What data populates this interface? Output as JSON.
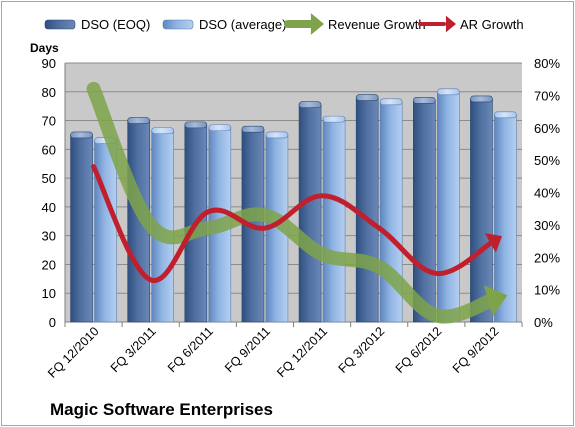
{
  "company": "Magic Software Enterprises",
  "colors": {
    "dso_eoq": "#4f6fa0",
    "dso_avg": "#8fb4e3",
    "revenue_growth": "#7ea34a",
    "ar_growth": "#c0202e",
    "plot_bg": "#c9c9c9",
    "grid": "#8c8c8c"
  },
  "chart_data": {
    "type": "bar",
    "categories": [
      "FQ 12/2010",
      "FQ 3/2011",
      "FQ 6/2011",
      "FQ 9/2011",
      "FQ 12/2011",
      "FQ 3/2012",
      "FQ 6/2012",
      "FQ 9/2012"
    ],
    "ylabel": "Days",
    "ylim": [
      0,
      90
    ],
    "yticks": [
      0,
      10,
      20,
      30,
      40,
      50,
      60,
      70,
      80,
      90
    ],
    "y2lim": [
      0,
      0.8
    ],
    "y2ticks": [
      "0%",
      "10%",
      "20%",
      "30%",
      "40%",
      "50%",
      "60%",
      "70%",
      "80%"
    ],
    "grid": true,
    "legend": "top",
    "series": [
      {
        "name": "DSO (EOQ)",
        "type": "bar",
        "axis": "left",
        "values": [
          65,
          70,
          68.5,
          67,
          75.5,
          78,
          77,
          77.5
        ]
      },
      {
        "name": "DSO (average)",
        "type": "bar",
        "axis": "left",
        "values": [
          63,
          66.5,
          67.5,
          65,
          70.5,
          76.5,
          80,
          72
        ]
      },
      {
        "name": "Revenue Growth",
        "type": "line",
        "axis": "right",
        "values": [
          0.72,
          0.3,
          0.29,
          0.33,
          0.21,
          0.17,
          0.02,
          0.07
        ]
      },
      {
        "name": "AR Growth",
        "type": "line",
        "axis": "right",
        "values": [
          0.48,
          0.13,
          0.34,
          0.29,
          0.39,
          0.29,
          0.15,
          0.25
        ]
      }
    ]
  }
}
